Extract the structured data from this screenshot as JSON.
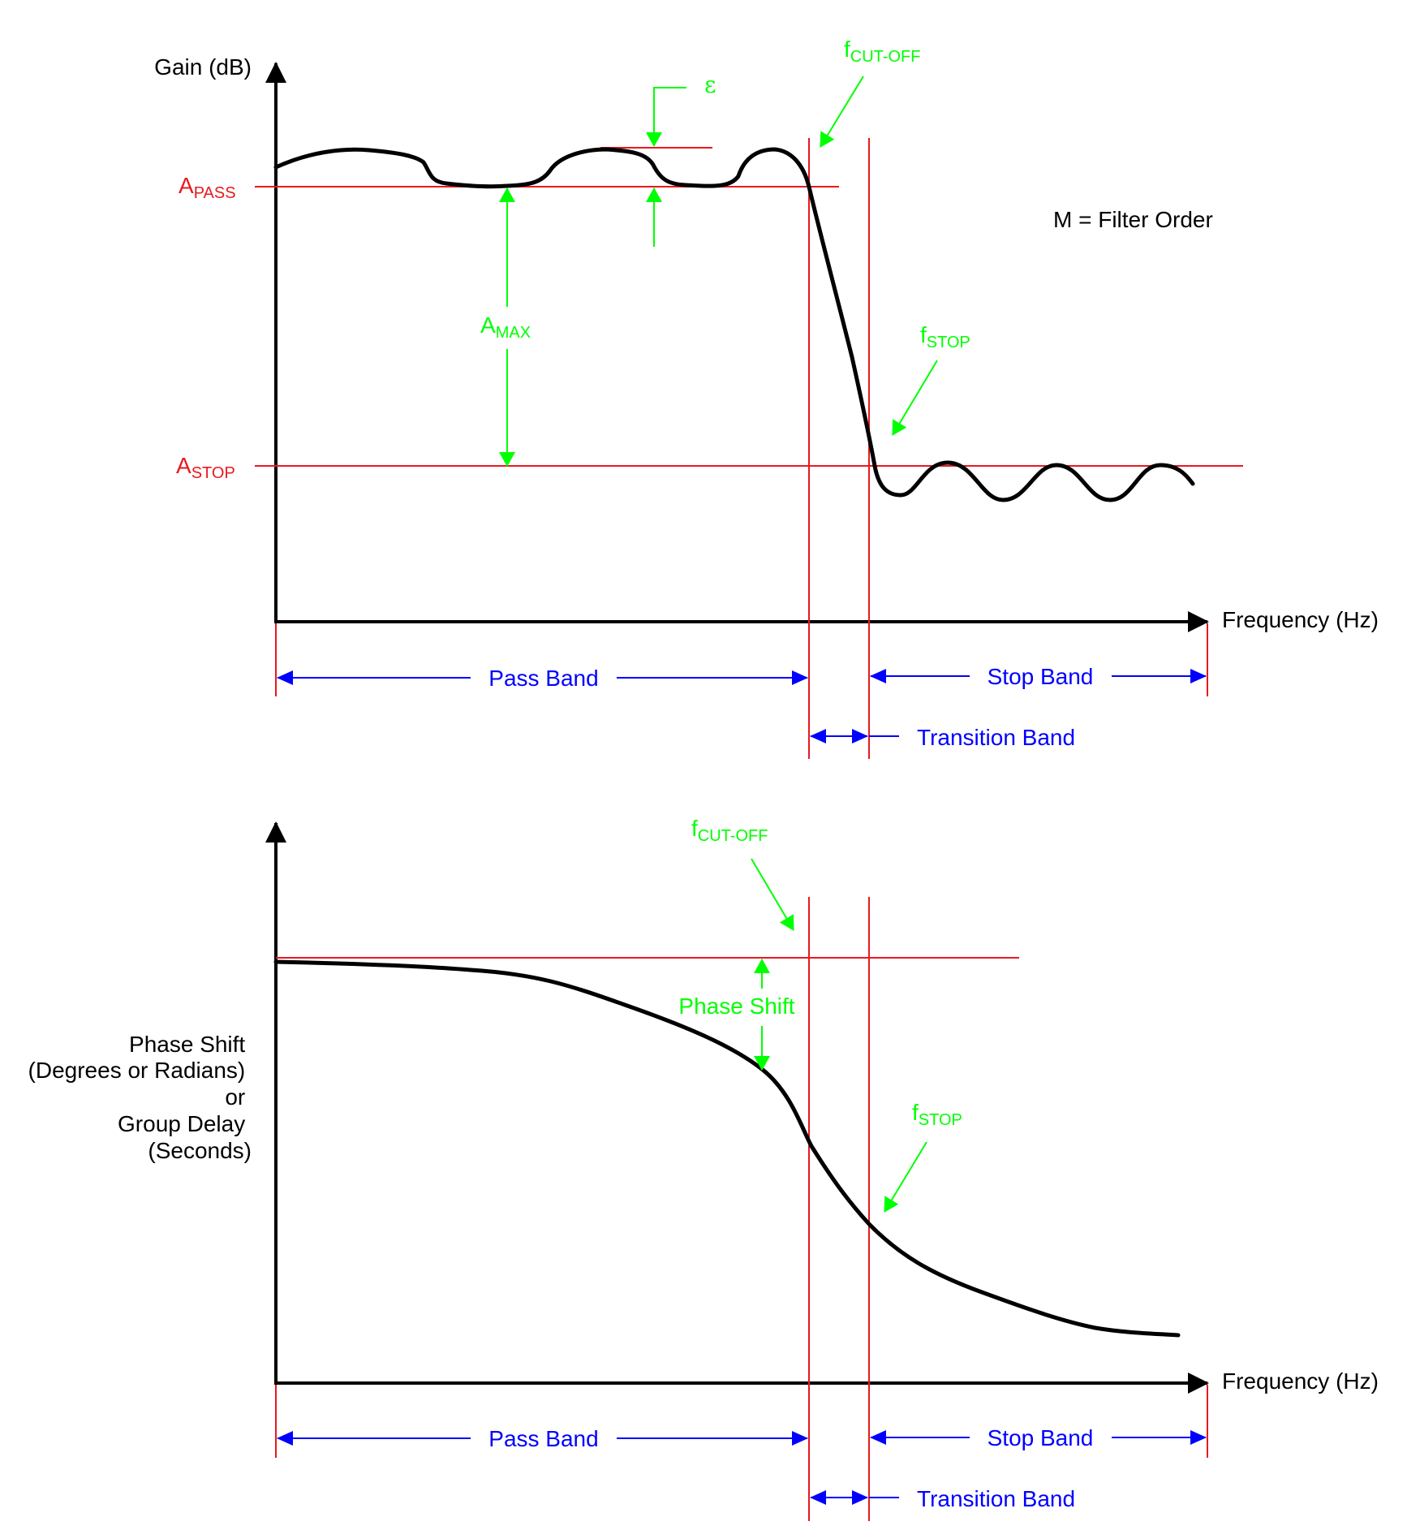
{
  "colors": {
    "curve": "#000000",
    "axis": "#000000",
    "reference_lines": "#e8191f",
    "annotations": "#00ff00",
    "band_labels": "#0000ff"
  },
  "top_panel": {
    "y_axis_label": "Gain (dB)",
    "x_axis_label": "Frequency (Hz)",
    "a_pass": {
      "main": "A",
      "sub": "PASS"
    },
    "a_stop": {
      "main": "A",
      "sub": "STOP"
    },
    "a_max": {
      "main": "A",
      "sub": "MAX"
    },
    "epsilon": "ε",
    "f_cutoff": {
      "main": "f",
      "sub": "CUT-OFF"
    },
    "f_stop": {
      "main": "f",
      "sub": "STOP"
    },
    "filter_order_note": "M = Filter Order",
    "pass_band": "Pass Band",
    "stop_band": "Stop Band",
    "transition_band": "Transition Band"
  },
  "bottom_panel": {
    "y_axis_label_lines": [
      "Phase Shift",
      "(Degrees or Radians)",
      "or",
      "Group Delay",
      "(Seconds)"
    ],
    "x_axis_label": "Frequency (Hz)",
    "f_cutoff": {
      "main": "f",
      "sub": "CUT-OFF"
    },
    "f_stop": {
      "main": "f",
      "sub": "STOP"
    },
    "phase_shift": "Phase Shift",
    "pass_band": "Pass Band",
    "stop_band": "Stop Band",
    "transition_band": "Transition Band"
  }
}
